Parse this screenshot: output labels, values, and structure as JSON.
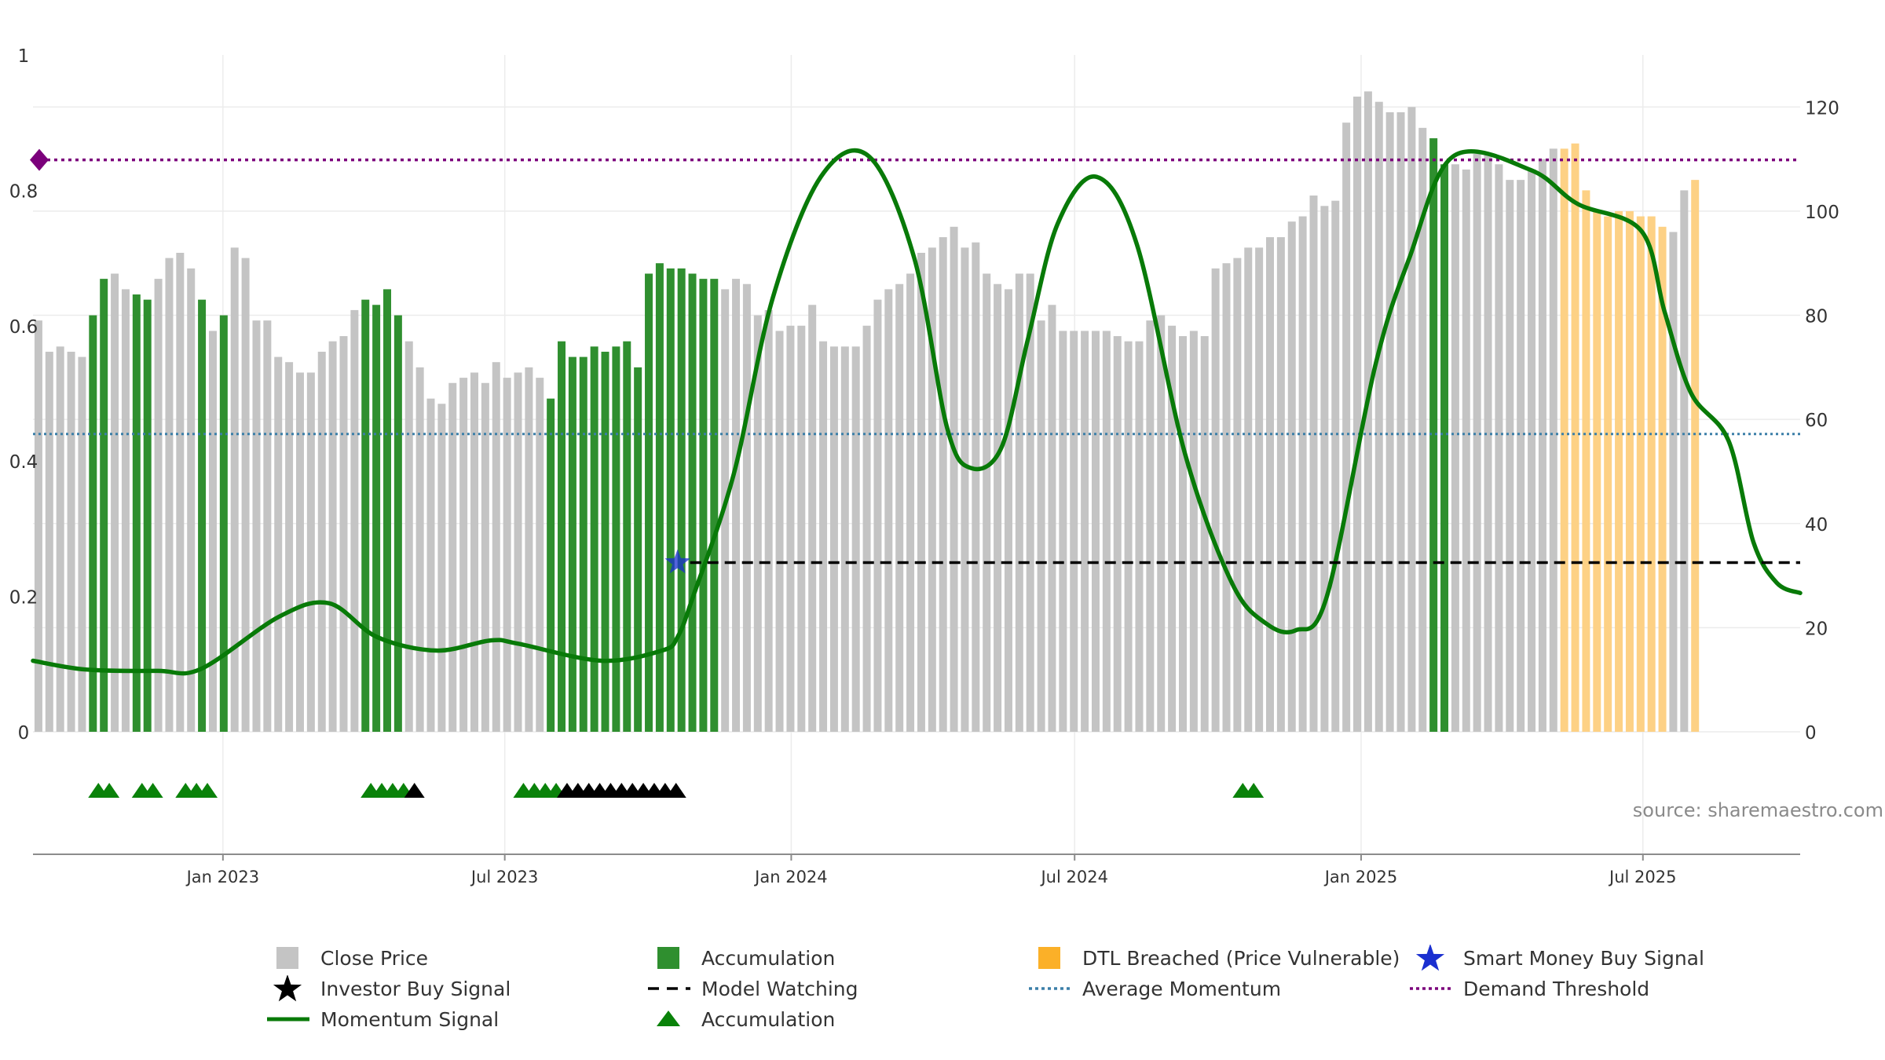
{
  "chart_data": {
    "type": "bar",
    "source": "source: sharemaestro.com",
    "x_ticks": [
      "Jan 2023",
      "Jul 2023",
      "Jan 2024",
      "Jul 2024",
      "Jan 2025",
      "Jul 2025"
    ],
    "y_left": {
      "ylim": [
        0,
        1
      ],
      "ticks": [
        "0",
        "0.2",
        "0.4",
        "0.6",
        "0.8",
        "1"
      ]
    },
    "y_right": {
      "ylim": [
        0,
        130
      ],
      "ticks": [
        "0",
        "20",
        "40",
        "60",
        "80",
        "100",
        "120"
      ]
    },
    "series": [
      {
        "name": "Close Price",
        "type": "bar",
        "axis": "right",
        "start": "2022-09-01",
        "interval_days": 7,
        "values": [
          79,
          73,
          74,
          73,
          72,
          80,
          87,
          88,
          85,
          84,
          83,
          87,
          91,
          92,
          89,
          83,
          77,
          80,
          93,
          91,
          79,
          79,
          72,
          71,
          69,
          69,
          73,
          75,
          76,
          81,
          83,
          82,
          85,
          80,
          75,
          70,
          64,
          63,
          67,
          68,
          69,
          67,
          71,
          68,
          69,
          70,
          68,
          64,
          75,
          72,
          72,
          74,
          73,
          74,
          75,
          70,
          88,
          90,
          89,
          89,
          88,
          87,
          87,
          85,
          87,
          86,
          80,
          81,
          77,
          78,
          78,
          82,
          75,
          74,
          74,
          74,
          78,
          83,
          85,
          86,
          88,
          92,
          93,
          95,
          97,
          93,
          94,
          88,
          86,
          85,
          88,
          88,
          79,
          82,
          77,
          77,
          77,
          77,
          77,
          76,
          75,
          75,
          79,
          80,
          78,
          76,
          77,
          76,
          89,
          90,
          91,
          93,
          93,
          95,
          95,
          98,
          99,
          103,
          101,
          102,
          117,
          122,
          123,
          121,
          119,
          119,
          120,
          116,
          114,
          109,
          109,
          108,
          111,
          111,
          109,
          106,
          106,
          108,
          110,
          112,
          112,
          113,
          104,
          100,
          99,
          100,
          100,
          99,
          99,
          97,
          96,
          104,
          106
        ],
        "colors": {
          "Close Price": "#c4c4c4",
          "Accumulation": "#2f8f2f",
          "DTL Breached (Price Vulnerable)": "#fdd185"
        },
        "bar_states": "GGGGGAAGGAAGGGGAGAGGGGGGGGGGGGAAAAGGGGGGGGGGGGGAAAAAAAAAAAAAAAAGGGGGGGGGGGGGGGGGGGGGGGGGGGGGGGGGGGGGGGGGGGGGGGGGGGGGGGGGGGGGGGGGAAGGGGGGGGGGDDDDDDDDDDGGDDDDGGDDDDDDDGGGGGGGGG"
      },
      {
        "name": "Momentum Signal",
        "type": "line",
        "axis": "left",
        "color": "#087a08",
        "x": [
          "2022-09-01",
          "2022-10-05",
          "2022-11-20",
          "2022-12-18",
          "2023-02-06",
          "2023-03-10",
          "2023-04-10",
          "2023-05-18",
          "2023-06-22",
          "2023-07-10",
          "2023-09-01",
          "2023-10-10",
          "2023-10-20",
          "2023-10-30",
          "2023-11-25",
          "2023-12-20",
          "2024-01-20",
          "2024-02-20",
          "2024-03-20",
          "2024-04-10",
          "2024-04-25",
          "2024-05-15",
          "2024-06-01",
          "2024-06-20",
          "2024-07-15",
          "2024-08-10",
          "2024-09-10",
          "2024-10-10",
          "2024-11-01",
          "2024-11-20",
          "2024-12-10",
          "2025-01-10",
          "2025-02-01",
          "2025-03-01",
          "2025-04-20",
          "2025-05-20",
          "2025-06-30",
          "2025-07-15",
          "2025-08-01",
          "2025-08-25",
          "2025-09-10",
          "2025-09-25",
          "2025-10-10"
        ],
        "values": [
          0.105,
          0.092,
          0.09,
          0.093,
          0.17,
          0.19,
          0.14,
          0.12,
          0.135,
          0.13,
          0.105,
          0.12,
          0.14,
          0.2,
          0.38,
          0.64,
          0.82,
          0.85,
          0.7,
          0.45,
          0.39,
          0.42,
          0.58,
          0.75,
          0.82,
          0.72,
          0.41,
          0.22,
          0.16,
          0.15,
          0.2,
          0.54,
          0.7,
          0.85,
          0.83,
          0.78,
          0.74,
          0.62,
          0.5,
          0.43,
          0.28,
          0.22,
          0.205
        ]
      },
      {
        "name": "Model Watching",
        "type": "line",
        "axis": "left",
        "color": "#000000",
        "x": [
          "2023-10-20",
          "2025-10-10"
        ],
        "values": [
          0.25,
          0.25
        ]
      },
      {
        "name": "Average Momentum",
        "type": "hline",
        "axis": "left",
        "color": "#3b7fa8",
        "value": 0.44
      },
      {
        "name": "Demand Threshold",
        "type": "hline",
        "axis": "left",
        "color": "#7b007b",
        "value": 0.845
      },
      {
        "name": "Smart Money Buy Signal",
        "type": "marker",
        "axis": "left",
        "color": "#1a2fd0",
        "x": [
          "2023-10-20"
        ],
        "values": [
          0.25
        ]
      },
      {
        "name": "Accumulation",
        "type": "marker",
        "color": "#0a820a",
        "x": [
          "2022-10-13",
          "2022-10-20",
          "2022-11-10",
          "2022-11-17",
          "2022-12-08",
          "2022-12-15",
          "2022-12-22",
          "2023-04-06",
          "2023-04-13",
          "2023-04-20",
          "2023-04-27",
          "2023-07-13",
          "2023-07-20",
          "2023-07-27",
          "2023-08-03",
          "2024-10-17",
          "2024-10-24"
        ]
      },
      {
        "name": "Investor Buy Signal",
        "type": "marker",
        "color": "#000000",
        "x": [
          "2023-05-04",
          "2023-08-10",
          "2023-08-17",
          "2023-08-24",
          "2023-08-31",
          "2023-09-07",
          "2023-09-14",
          "2023-09-21",
          "2023-09-28",
          "2023-10-05",
          "2023-10-12",
          "2023-10-19"
        ]
      }
    ],
    "legend": {
      "placement": "bottom",
      "entries": [
        {
          "label": "Close Price",
          "symbol": "square",
          "color": "#c4c4c4"
        },
        {
          "label": "Accumulation",
          "symbol": "square",
          "color": "#2f8f2f"
        },
        {
          "label": "DTL Breached (Price Vulnerable)",
          "symbol": "square",
          "color": "#fbb028"
        },
        {
          "label": "Smart Money Buy Signal",
          "symbol": "star",
          "color": "#1a2fd0"
        },
        {
          "label": "Investor Buy Signal",
          "symbol": "star",
          "color": "#000000"
        },
        {
          "label": "Model Watching",
          "symbol": "dash",
          "color": "#000000"
        },
        {
          "label": "Average Momentum",
          "symbol": "dot",
          "color": "#3b7fa8"
        },
        {
          "label": "Demand Threshold",
          "symbol": "dot",
          "color": "#7b007b"
        },
        {
          "label": "Momentum Signal",
          "symbol": "line",
          "color": "#087a08"
        },
        {
          "label": "Accumulation",
          "symbol": "triangle",
          "color": "#0a820a"
        }
      ]
    }
  }
}
